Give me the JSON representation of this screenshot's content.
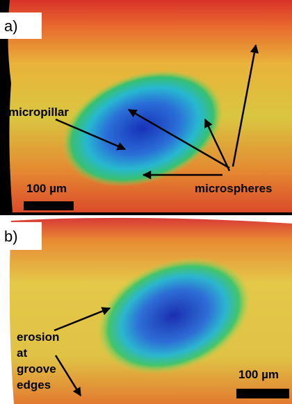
{
  "panels": [
    {
      "label": "a)",
      "annotations": [
        "micropillar",
        "microspheres"
      ],
      "scale_bar": "100 µm"
    },
    {
      "label": "b)",
      "annotations": [
        "erosion",
        "at",
        "groove",
        "edges"
      ],
      "scale_bar": "100 µm"
    }
  ]
}
